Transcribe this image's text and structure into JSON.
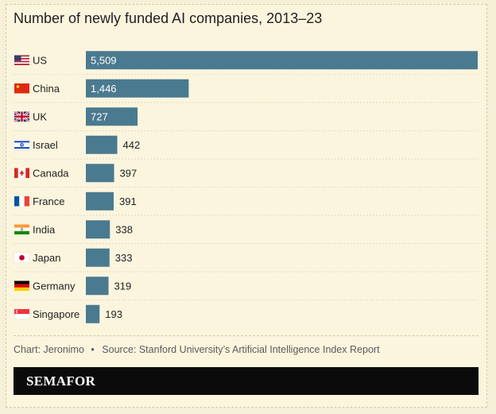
{
  "chart_data": {
    "type": "bar",
    "orientation": "horizontal",
    "title": "Number of newly funded AI companies, 2013–23",
    "categories": [
      "US",
      "China",
      "UK",
      "Israel",
      "Canada",
      "France",
      "India",
      "Japan",
      "Germany",
      "Singapore"
    ],
    "values": [
      5509,
      1446,
      727,
      442,
      397,
      391,
      338,
      333,
      319,
      193
    ],
    "value_labels": [
      "5,509",
      "1,446",
      "727",
      "442",
      "397",
      "391",
      "338",
      "333",
      "319",
      "193"
    ],
    "flag_icons": [
      "us-flag-icon",
      "china-flag-icon",
      "uk-flag-icon",
      "israel-flag-icon",
      "canada-flag-icon",
      "france-flag-icon",
      "india-flag-icon",
      "japan-flag-icon",
      "germany-flag-icon",
      "singapore-flag-icon"
    ],
    "xlim": [
      0,
      5509
    ],
    "bar_color": "#4a7a8f",
    "xlabel": "",
    "ylabel": ""
  },
  "source": {
    "credit": "Chart: Jeronimo",
    "separator": "•",
    "text": "Source: Stanford University’s Artificial Intelligence Index Report"
  },
  "brand": {
    "name": "SEMAFOR"
  },
  "colors": {
    "background": "#fbf5de",
    "brand_bar": "#0b0b0b"
  }
}
